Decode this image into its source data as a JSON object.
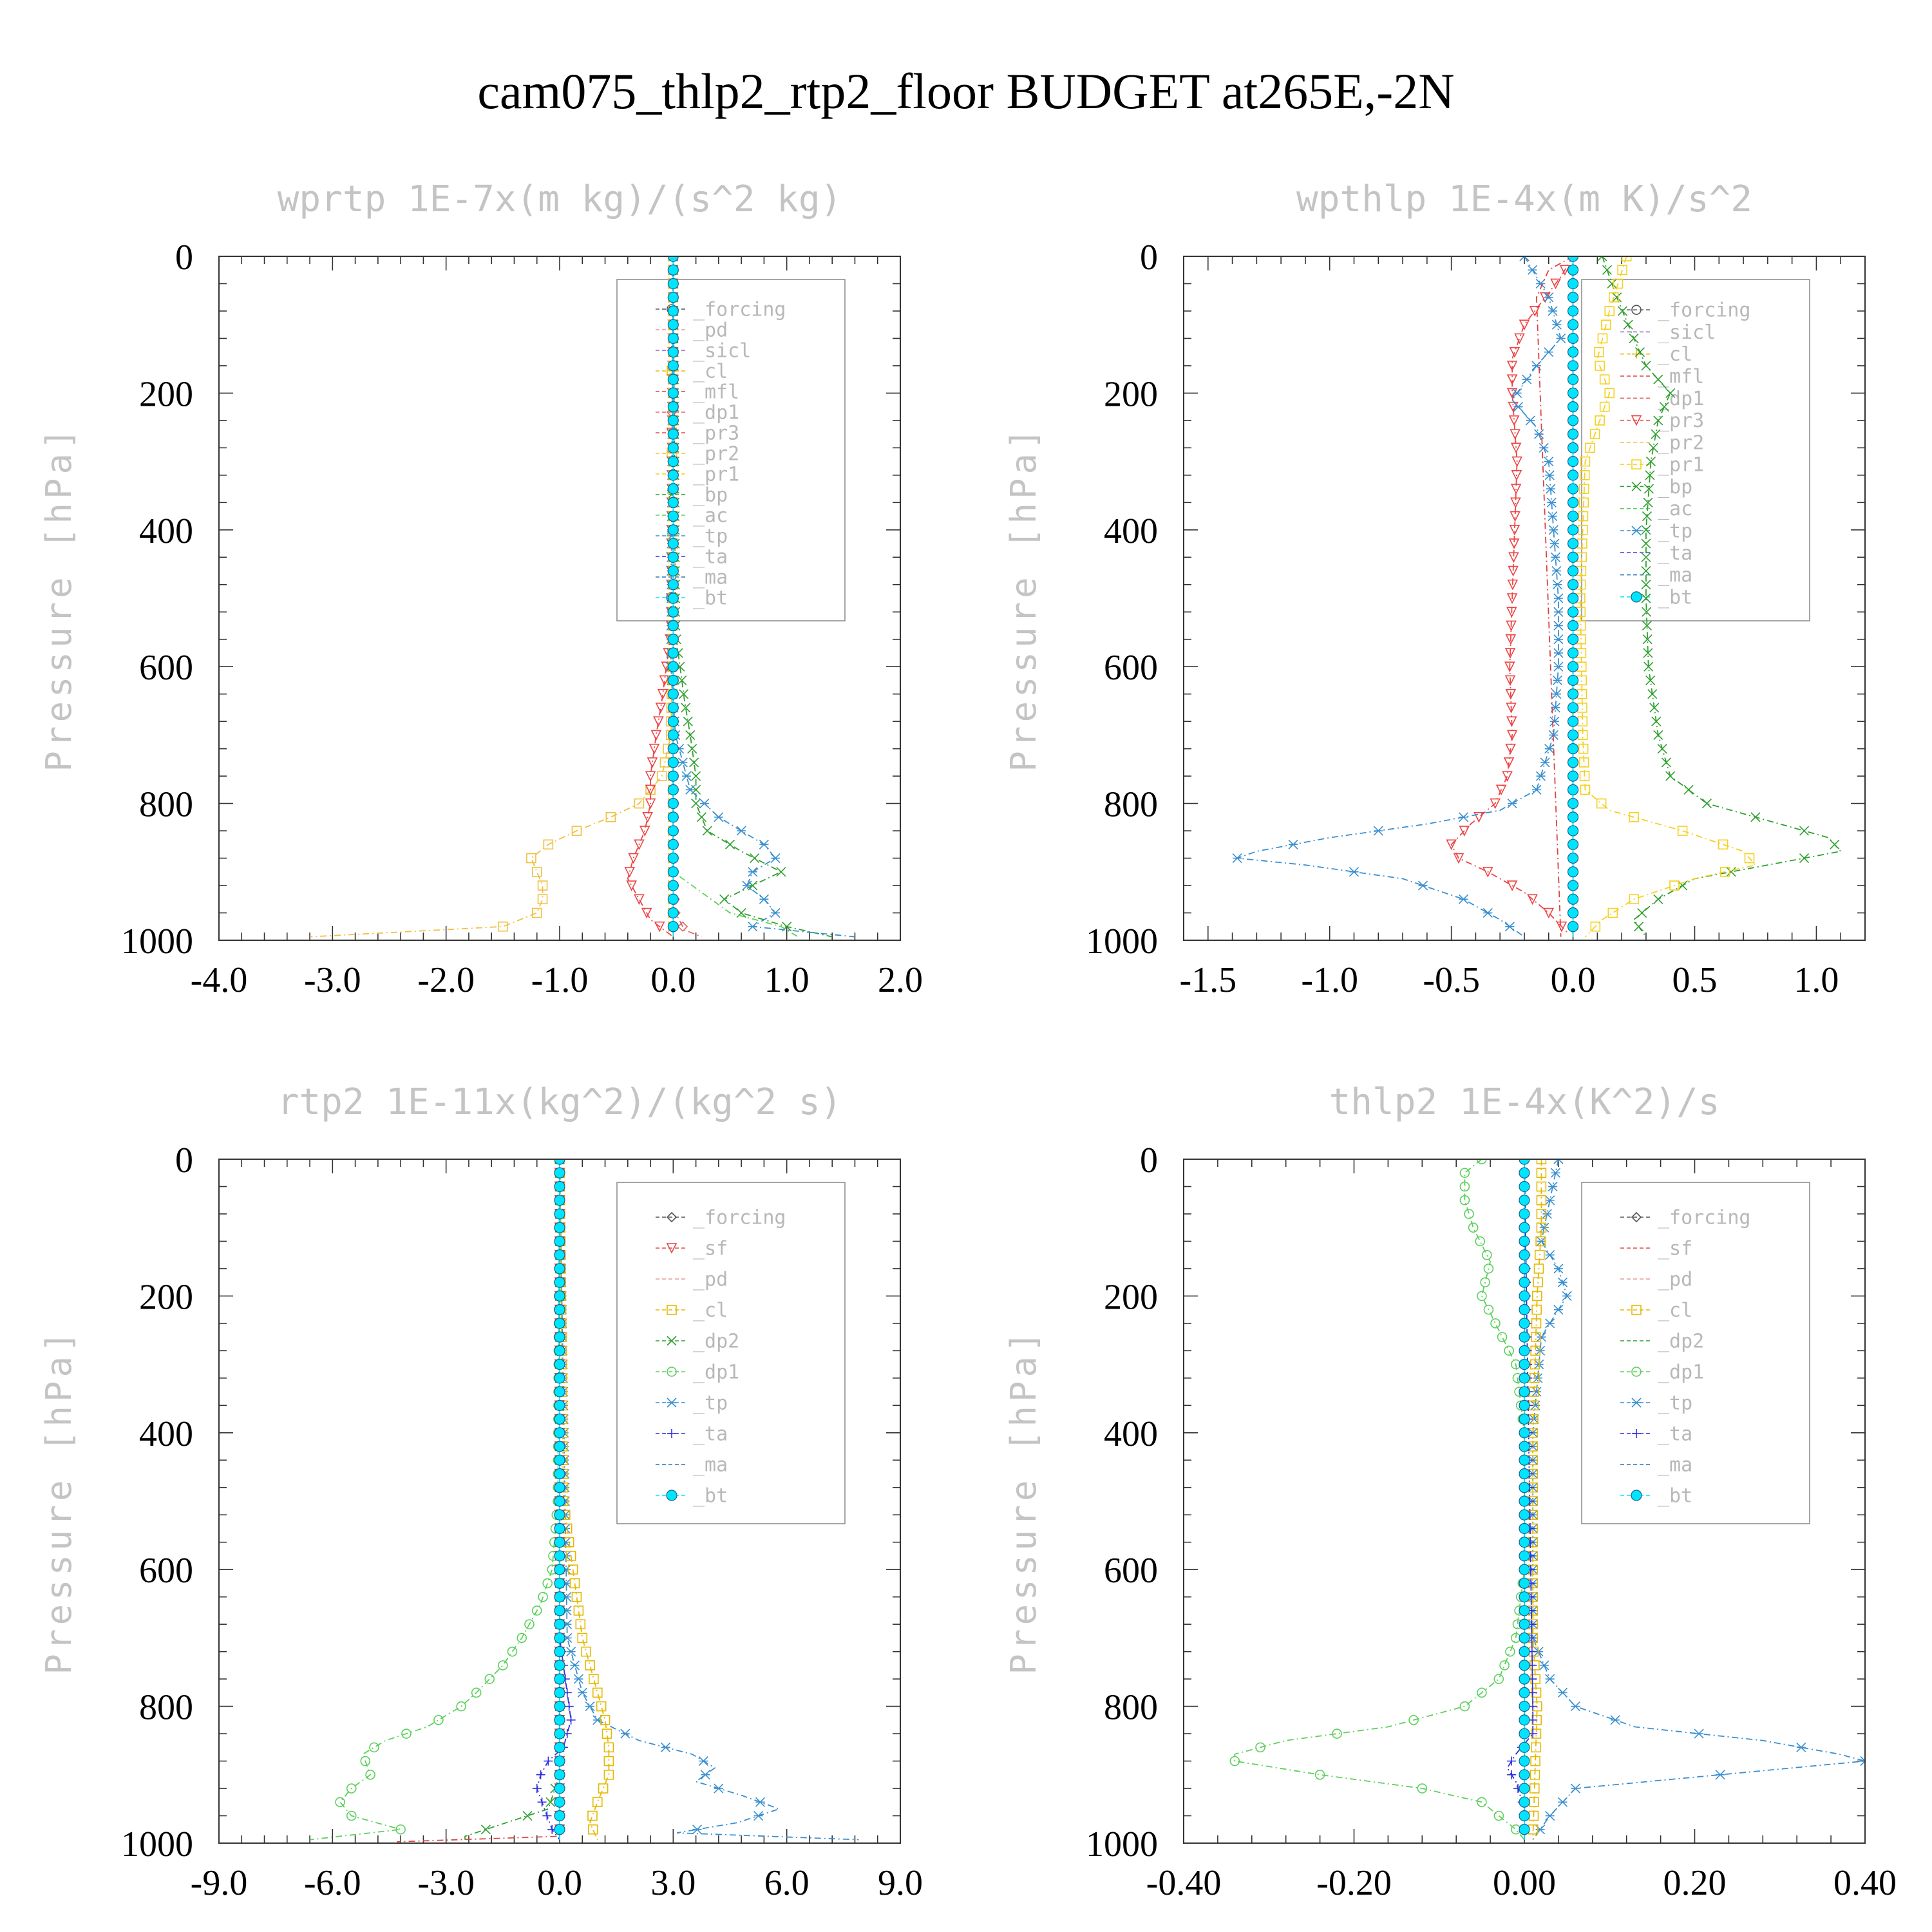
{
  "title": "cam075_thlp2_rtp2_floor  BUDGET at265E,-2N",
  "colors": {
    "forcing": "#555555",
    "pd": "#e59a9a",
    "sicl": "#9b59d0",
    "cl": "#e6b800",
    "mfl": "#e04040",
    "dp1": "#e06666",
    "pr3": "#ee4444",
    "pr2": "#f0c040",
    "pr1": "#f5d020",
    "bp": "#2ea02e",
    "ac": "#5cd05c",
    "tp": "#3a8fd0",
    "ta": "#3030e0",
    "ma": "#2277bb",
    "bt": "#00e5ff",
    "sf": "#e04848",
    "dp2": "#2ea02e"
  },
  "chart_data": [
    {
      "type": "line",
      "title": "wprtp  1E-7x(m kg)/(s^2 kg)",
      "ylabel": "Pressure [hPa]",
      "xlim": [
        -4.0,
        2.0
      ],
      "ylim": [
        1000,
        0
      ],
      "xticks": [
        "-4.0",
        "-3.0",
        "-2.0",
        "-1.0",
        "0.0",
        "1.0",
        "2.0"
      ],
      "yticks": [
        "0",
        "200",
        "400",
        "600",
        "800",
        "1000"
      ],
      "legend": [
        "_forcing",
        "_pd",
        "_sicl",
        "_cl",
        "_mfl",
        "_dp1",
        "_pr3",
        "_pr2",
        "_pr1",
        "_bp",
        "_ac",
        "_tp",
        "_ta",
        "_ma",
        "_bt"
      ],
      "series": [
        {
          "name": "_pr2",
          "color": "pr2",
          "marker": "square",
          "y": [
            0,
            500,
            700,
            760,
            800,
            820,
            840,
            860,
            880,
            900,
            920,
            940,
            960,
            980,
            995
          ],
          "values": [
            0,
            0,
            -0.02,
            -0.1,
            -0.3,
            -0.55,
            -0.85,
            -1.1,
            -1.25,
            -1.2,
            -1.15,
            -1.15,
            -1.2,
            -1.5,
            -3.2
          ]
        },
        {
          "name": "_pr3",
          "color": "pr3",
          "marker": "tri-down",
          "y": [
            0,
            550,
            650,
            700,
            760,
            800,
            840,
            880,
            910,
            940,
            970,
            995
          ],
          "values": [
            0,
            -0.02,
            -0.1,
            -0.15,
            -0.2,
            -0.2,
            -0.25,
            -0.35,
            -0.4,
            -0.3,
            -0.2,
            0
          ]
        },
        {
          "name": "_bp",
          "color": "bp",
          "marker": "x",
          "y": [
            0,
            550,
            650,
            700,
            760,
            800,
            840,
            870,
            900,
            920,
            940,
            960,
            980,
            995
          ],
          "values": [
            0,
            0.02,
            0.1,
            0.15,
            0.2,
            0.2,
            0.3,
            0.6,
            0.95,
            0.7,
            0.45,
            0.6,
            1.0,
            1.4
          ]
        },
        {
          "name": "_tp",
          "color": "tp",
          "marker": "asterisk",
          "y": [
            0,
            600,
            700,
            780,
            820,
            860,
            880,
            900,
            920,
            940,
            960,
            980,
            995
          ],
          "values": [
            0,
            -0.02,
            0.02,
            0.15,
            0.4,
            0.8,
            0.9,
            0.7,
            0.65,
            0.8,
            0.9,
            0.7,
            1.6
          ]
        },
        {
          "name": "_dp1",
          "color": "dp1",
          "marker": "diamond",
          "y": [
            0,
            900,
            960,
            985,
            995
          ],
          "values": [
            0,
            0,
            0.02,
            0.1,
            0.25
          ]
        },
        {
          "name": "_ac",
          "color": "ac",
          "marker": "none",
          "y": [
            0,
            900,
            960,
            980,
            995
          ],
          "values": [
            0,
            0,
            0.5,
            0.95,
            1.1
          ]
        },
        {
          "name": "_cl",
          "color": "cl",
          "marker": "tri-right",
          "y": [
            0,
            995
          ],
          "values": [
            0,
            0
          ]
        },
        {
          "name": "_sicl",
          "color": "sicl",
          "marker": "plus",
          "y": [
            0,
            995
          ],
          "values": [
            0,
            0
          ]
        },
        {
          "name": "_forcing",
          "color": "forcing",
          "marker": "circle",
          "y": [
            0,
            995
          ],
          "values": [
            0,
            0
          ]
        },
        {
          "name": "_bt",
          "color": "bt",
          "marker": "dot",
          "y": [
            0,
            995
          ],
          "values": [
            0,
            0
          ]
        }
      ]
    },
    {
      "type": "line",
      "title": "wpthlp  1E-4x(m K)/s^2",
      "ylabel": "Pressure [hPa]",
      "xlim": [
        -1.6,
        1.2
      ],
      "ylim": [
        1000,
        0
      ],
      "xticks": [
        "-1.5",
        "-1.0",
        "-0.5",
        "0.0",
        "0.5",
        "1.0"
      ],
      "xtick_values": [
        -1.5,
        -1.0,
        -0.5,
        0.0,
        0.5,
        1.0
      ],
      "yticks": [
        "0",
        "200",
        "400",
        "600",
        "800",
        "1000"
      ],
      "legend": [
        "_forcing",
        "_sicl",
        "_cl",
        "_mfl",
        "_dp1",
        "_pr3",
        "_pr2",
        "_pr1",
        "_bp",
        "_ac",
        "_tp",
        "_ta",
        "_ma",
        "_bt"
      ],
      "series": [
        {
          "name": "_pr3",
          "color": "pr3",
          "marker": "tri-down",
          "y": [
            0,
            30,
            100,
            150,
            200,
            300,
            400,
            500,
            600,
            700,
            760,
            800,
            830,
            860,
            880,
            900,
            930,
            960,
            990
          ],
          "values": [
            0,
            -0.05,
            -0.2,
            -0.25,
            -0.25,
            -0.23,
            -0.24,
            -0.25,
            -0.26,
            -0.25,
            -0.27,
            -0.32,
            -0.42,
            -0.5,
            -0.47,
            -0.35,
            -0.2,
            -0.1,
            -0.02
          ]
        },
        {
          "name": "_tp",
          "color": "tp",
          "marker": "asterisk",
          "y": [
            0,
            60,
            120,
            160,
            210,
            250,
            300,
            400,
            500,
            600,
            700,
            780,
            810,
            830,
            850,
            870,
            880,
            890,
            910,
            940,
            970,
            995
          ],
          "values": [
            -0.2,
            -0.1,
            -0.05,
            -0.15,
            -0.25,
            -0.15,
            -0.1,
            -0.08,
            -0.06,
            -0.06,
            -0.08,
            -0.15,
            -0.3,
            -0.6,
            -1.0,
            -1.3,
            -1.38,
            -1.1,
            -0.7,
            -0.45,
            -0.3,
            -0.2
          ]
        },
        {
          "name": "_bp",
          "color": "bp",
          "marker": "x",
          "y": [
            0,
            60,
            120,
            160,
            200,
            240,
            300,
            400,
            500,
            600,
            700,
            760,
            800,
            830,
            850,
            870,
            890,
            910,
            940,
            970,
            995
          ],
          "values": [
            0.12,
            0.18,
            0.25,
            0.3,
            0.4,
            0.35,
            0.32,
            0.3,
            0.3,
            0.31,
            0.35,
            0.4,
            0.55,
            0.85,
            1.05,
            1.1,
            0.8,
            0.5,
            0.35,
            0.25,
            0.3
          ]
        },
        {
          "name": "_pr1",
          "color": "pr1",
          "marker": "square",
          "y": [
            0,
            80,
            150,
            200,
            230,
            300,
            500,
            700,
            780,
            810,
            840,
            870,
            890,
            910,
            940,
            970,
            995
          ],
          "values": [
            0.22,
            0.15,
            0.1,
            0.15,
            0.12,
            0.05,
            0.03,
            0.04,
            0.05,
            0.15,
            0.45,
            0.7,
            0.75,
            0.5,
            0.25,
            0.12,
            0.05
          ]
        },
        {
          "name": "_mfl",
          "color": "mfl",
          "marker": "none",
          "y": [
            0,
            20,
            60,
            995
          ],
          "values": [
            0,
            -0.1,
            -0.15,
            -0.05
          ]
        },
        {
          "name": "_cl",
          "color": "cl",
          "marker": "plus",
          "y": [
            0,
            995
          ],
          "values": [
            0,
            0
          ]
        },
        {
          "name": "_forcing",
          "color": "forcing",
          "marker": "circle",
          "y": [
            0,
            995
          ],
          "values": [
            0,
            0
          ]
        },
        {
          "name": "_bt",
          "color": "bt",
          "marker": "dot",
          "y": [
            0,
            995
          ],
          "values": [
            0,
            0
          ]
        }
      ]
    },
    {
      "type": "line",
      "title": "rtp2  1E-11x(kg^2)/(kg^2 s)",
      "ylabel": "Pressure [hPa]",
      "xlim": [
        -9.0,
        9.0
      ],
      "ylim": [
        1000,
        0
      ],
      "xticks": [
        "-9.0",
        "-6.0",
        "-3.0",
        "0.0",
        "3.0",
        "6.0",
        "9.0"
      ],
      "yticks": [
        "0",
        "200",
        "400",
        "600",
        "800",
        "1000"
      ],
      "legend": [
        "_forcing",
        "_sf",
        "_pd",
        "_cl",
        "_dp2",
        "_dp1",
        "_tp",
        "_ta",
        "_ma",
        "_bt"
      ],
      "series": [
        {
          "name": "_dp1",
          "color": "ac",
          "marker": "circle",
          "y": [
            0,
            500,
            600,
            650,
            700,
            740,
            780,
            800,
            830,
            850,
            870,
            900,
            920,
            940,
            960,
            980,
            995
          ],
          "values": [
            0,
            -0.05,
            -0.2,
            -0.5,
            -1.0,
            -1.5,
            -2.2,
            -2.6,
            -3.5,
            -4.6,
            -5.2,
            -5.0,
            -5.5,
            -5.8,
            -5.5,
            -4.2,
            -6.6
          ]
        },
        {
          "name": "_tp",
          "color": "tp",
          "marker": "asterisk",
          "y": [
            0,
            700,
            780,
            820,
            850,
            870,
            890,
            910,
            930,
            950,
            970,
            985,
            995
          ],
          "values": [
            0,
            0.2,
            0.6,
            1.0,
            2.1,
            3.5,
            4.1,
            3.6,
            4.8,
            5.8,
            4.7,
            3.1,
            7.9
          ]
        },
        {
          "name": "_cl",
          "color": "cl",
          "marker": "square",
          "y": [
            0,
            500,
            700,
            780,
            820,
            860,
            900,
            940,
            970,
            995
          ],
          "values": [
            0,
            0.1,
            0.6,
            1.0,
            1.2,
            1.3,
            1.3,
            1.0,
            0.8,
            1.0
          ]
        },
        {
          "name": "_ta",
          "color": "ta",
          "marker": "plus",
          "y": [
            0,
            700,
            780,
            820,
            860,
            880,
            900,
            920,
            950,
            980,
            995
          ],
          "values": [
            0,
            0,
            0.2,
            0.3,
            0.1,
            -0.3,
            -0.5,
            -0.6,
            -0.4,
            -0.2,
            0
          ]
        },
        {
          "name": "_dp2",
          "color": "dp2",
          "marker": "x",
          "y": [
            0,
            900,
            950,
            990,
            995
          ],
          "values": [
            0,
            0,
            -0.3,
            -2.5,
            -2.5
          ]
        },
        {
          "name": "_sf",
          "color": "sf",
          "marker": "tri-down",
          "y": [
            0,
            990,
            998
          ],
          "values": [
            0,
            0,
            -4.3
          ]
        },
        {
          "name": "_forcing",
          "color": "forcing",
          "marker": "diamond",
          "y": [
            0,
            995
          ],
          "values": [
            0,
            0
          ]
        },
        {
          "name": "_bt",
          "color": "bt",
          "marker": "dot",
          "y": [
            0,
            995
          ],
          "values": [
            0,
            0
          ]
        }
      ]
    },
    {
      "type": "line",
      "title": "thlp2  1E-4x(K^2)/s",
      "ylabel": "Pressure [hPa]",
      "xlim": [
        -0.4,
        0.4
      ],
      "ylim": [
        1000,
        0
      ],
      "xticks": [
        "-0.40",
        "-0.20",
        "0.00",
        "0.20",
        "0.40"
      ],
      "yticks": [
        "0",
        "200",
        "400",
        "600",
        "800",
        "1000"
      ],
      "legend": [
        "_forcing",
        "_sf",
        "_pd",
        "_cl",
        "_dp2",
        "_dp1",
        "_tp",
        "_ta",
        "_ma",
        "_bt"
      ],
      "series": [
        {
          "name": "_dp1",
          "color": "ac",
          "marker": "circle",
          "y": [
            0,
            20,
            60,
            100,
            150,
            200,
            250,
            300,
            400,
            500,
            600,
            700,
            760,
            800,
            830,
            850,
            870,
            880,
            900,
            920,
            940,
            960,
            980,
            995
          ],
          "values": [
            -0.05,
            -0.07,
            -0.07,
            -0.06,
            -0.04,
            -0.05,
            -0.03,
            -0.01,
            0,
            0,
            0,
            -0.01,
            -0.03,
            -0.07,
            -0.16,
            -0.28,
            -0.34,
            -0.34,
            -0.24,
            -0.12,
            -0.05,
            -0.03,
            -0.01,
            0
          ]
        },
        {
          "name": "_tp",
          "color": "tp",
          "marker": "asterisk",
          "y": [
            0,
            60,
            120,
            160,
            200,
            260,
            400,
            700,
            760,
            800,
            830,
            850,
            870,
            880,
            900,
            920,
            960,
            995
          ],
          "values": [
            0.04,
            0.03,
            0.02,
            0.04,
            0.05,
            0.02,
            0.01,
            0.01,
            0.03,
            0.06,
            0.13,
            0.28,
            0.37,
            0.4,
            0.23,
            0.06,
            0.03,
            0.01
          ]
        },
        {
          "name": "_cl",
          "color": "cl",
          "marker": "square",
          "y": [
            0,
            100,
            200,
            400,
            700,
            800,
            995
          ],
          "values": [
            0.02,
            0.02,
            0.015,
            0.01,
            0.01,
            0.015,
            0.01
          ]
        },
        {
          "name": "_ta",
          "color": "ta",
          "marker": "plus",
          "y": [
            0,
            800,
            840,
            870,
            890,
            910,
            950,
            995
          ],
          "values": [
            0,
            0.01,
            0.01,
            -0.01,
            -0.02,
            -0.01,
            0,
            0
          ]
        },
        {
          "name": "_forcing",
          "color": "forcing",
          "marker": "diamond",
          "y": [
            0,
            995
          ],
          "values": [
            0,
            0
          ]
        },
        {
          "name": "_bt",
          "color": "bt",
          "marker": "dot",
          "y": [
            0,
            995
          ],
          "values": [
            0,
            0
          ]
        }
      ]
    }
  ]
}
